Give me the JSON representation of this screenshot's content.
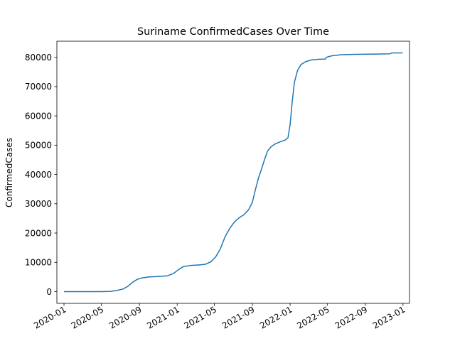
{
  "chart_data": {
    "type": "line",
    "title": "Suriname  ConfirmedCases Over Time",
    "xlabel": "",
    "ylabel": "ConfirmedCases",
    "xlim": [
      "2019-12-09",
      "2023-01-22"
    ],
    "ylim": [
      -4000,
      85500
    ],
    "grid": false,
    "legend": "none",
    "color": "#1f77b4",
    "x_ticks": [
      {
        "date": "2020-01-01",
        "label": "2020-01"
      },
      {
        "date": "2020-05-01",
        "label": "2020-05"
      },
      {
        "date": "2020-09-01",
        "label": "2020-09"
      },
      {
        "date": "2021-01-01",
        "label": "2021-01"
      },
      {
        "date": "2021-05-01",
        "label": "2021-05"
      },
      {
        "date": "2021-09-01",
        "label": "2021-09"
      },
      {
        "date": "2022-01-01",
        "label": "2022-01"
      },
      {
        "date": "2022-05-01",
        "label": "2022-05"
      },
      {
        "date": "2022-09-01",
        "label": "2022-09"
      },
      {
        "date": "2023-01-01",
        "label": "2023-01"
      }
    ],
    "y_ticks": [
      {
        "value": 0,
        "label": "0"
      },
      {
        "value": 10000,
        "label": "10000"
      },
      {
        "value": 20000,
        "label": "20000"
      },
      {
        "value": 30000,
        "label": "30000"
      },
      {
        "value": 40000,
        "label": "40000"
      },
      {
        "value": 50000,
        "label": "50000"
      },
      {
        "value": 60000,
        "label": "60000"
      },
      {
        "value": 70000,
        "label": "70000"
      },
      {
        "value": 80000,
        "label": "80000"
      }
    ],
    "series": [
      {
        "points": [
          [
            "2020-01-01",
            0
          ],
          [
            "2020-03-15",
            0
          ],
          [
            "2020-05-01",
            0
          ],
          [
            "2020-06-01",
            100
          ],
          [
            "2020-06-20",
            400
          ],
          [
            "2020-07-10",
            900
          ],
          [
            "2020-07-25",
            1800
          ],
          [
            "2020-08-10",
            3200
          ],
          [
            "2020-08-25",
            4200
          ],
          [
            "2020-09-10",
            4700
          ],
          [
            "2020-10-01",
            5000
          ],
          [
            "2020-11-01",
            5200
          ],
          [
            "2020-12-01",
            5400
          ],
          [
            "2020-12-20",
            6200
          ],
          [
            "2021-01-05",
            7500
          ],
          [
            "2021-01-20",
            8500
          ],
          [
            "2021-02-10",
            8900
          ],
          [
            "2021-03-10",
            9100
          ],
          [
            "2021-04-01",
            9300
          ],
          [
            "2021-04-20",
            10200
          ],
          [
            "2021-05-05",
            11800
          ],
          [
            "2021-05-20",
            14500
          ],
          [
            "2021-06-05",
            18800
          ],
          [
            "2021-06-20",
            21600
          ],
          [
            "2021-07-05",
            23800
          ],
          [
            "2021-07-20",
            25200
          ],
          [
            "2021-08-05",
            26300
          ],
          [
            "2021-08-20",
            28000
          ],
          [
            "2021-09-01",
            30500
          ],
          [
            "2021-09-10",
            34500
          ],
          [
            "2021-09-20",
            38500
          ],
          [
            "2021-10-01",
            42000
          ],
          [
            "2021-10-10",
            45000
          ],
          [
            "2021-10-20",
            48000
          ],
          [
            "2021-11-01",
            49500
          ],
          [
            "2021-11-15",
            50500
          ],
          [
            "2021-12-01",
            51200
          ],
          [
            "2021-12-15",
            51700
          ],
          [
            "2021-12-25",
            52500
          ],
          [
            "2022-01-01",
            57000
          ],
          [
            "2022-01-08",
            65000
          ],
          [
            "2022-01-15",
            71500
          ],
          [
            "2022-01-25",
            75500
          ],
          [
            "2022-02-05",
            77500
          ],
          [
            "2022-02-20",
            78500
          ],
          [
            "2022-03-10",
            79100
          ],
          [
            "2022-04-01",
            79300
          ],
          [
            "2022-04-25",
            79400
          ],
          [
            "2022-04-28",
            80000
          ],
          [
            "2022-05-15",
            80500
          ],
          [
            "2022-06-15",
            80900
          ],
          [
            "2022-08-01",
            81000
          ],
          [
            "2022-10-01",
            81100
          ],
          [
            "2022-11-20",
            81200
          ],
          [
            "2022-11-25",
            81500
          ],
          [
            "2022-12-31",
            81500
          ]
        ]
      }
    ]
  }
}
